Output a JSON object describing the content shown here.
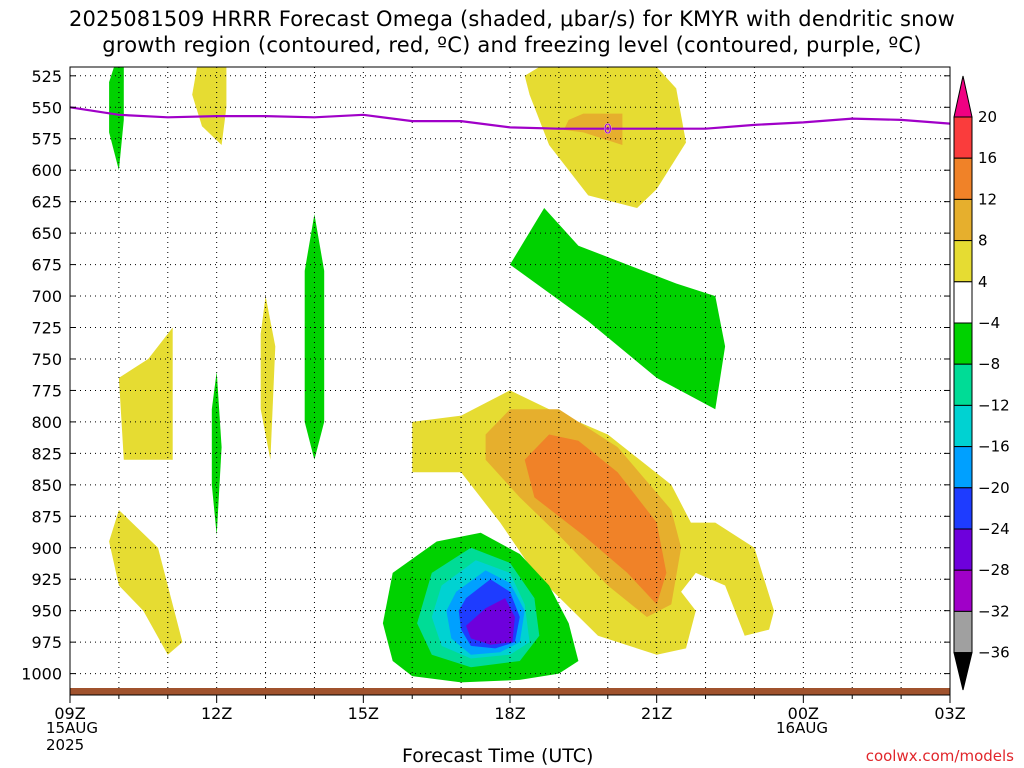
{
  "title": "2025081509 HRRR Forecast Omega (shaded, μbar/s) for KMYR with dendritic snow\ngrowth region (contoured, red, ºC) and freezing level (contoured, purple, ºC)",
  "credit": "coolwx.com/models",
  "start_date": "15AUG\n2025",
  "next_date": "16AUG",
  "colors": {
    "freezing_level": "#a000c8",
    "terrain": "#a0522d",
    "levels": [
      "#000000",
      "#a0a0a0",
      "#a000c8",
      "#6e00dc",
      "#1e3cff",
      "#00a0ff",
      "#00d2d2",
      "#00dc96",
      "#00d200",
      "#ffffff",
      "#e6dc32",
      "#e6af2d",
      "#f08228",
      "#fa3c3c",
      "#f00082"
    ]
  },
  "chart_data": {
    "type": "heatmap",
    "title": "2025081509 HRRR Forecast Omega (shaded, μbar/s) for KMYR with dendritic snow growth region (contoured, red, ºC) and freezing level (contoured, purple, ºC)",
    "xlabel": "Forecast Time (UTC)",
    "ylabel": "",
    "x_ticks": [
      "09Z",
      "12Z",
      "15Z",
      "18Z",
      "21Z",
      "00Z",
      "03Z"
    ],
    "x_ticks_hours": [
      0,
      3,
      6,
      9,
      12,
      15,
      18
    ],
    "y_ticks": [
      525,
      550,
      575,
      600,
      625,
      650,
      675,
      700,
      725,
      750,
      775,
      800,
      825,
      850,
      875,
      900,
      925,
      950,
      975,
      1000
    ],
    "ylim": [
      1017,
      518
    ],
    "xlim": [
      0,
      18
    ],
    "grid": true,
    "colorbar": {
      "labels": [
        20,
        16,
        12,
        8,
        4,
        -4,
        -8,
        -12,
        -16,
        -20,
        -24,
        -28,
        -32,
        -36
      ]
    },
    "freezing_level_contour": {
      "label": "0",
      "points": [
        [
          0,
          550
        ],
        [
          1,
          556
        ],
        [
          2,
          558
        ],
        [
          3,
          557
        ],
        [
          4,
          557
        ],
        [
          5,
          558
        ],
        [
          6,
          556
        ],
        [
          7,
          561
        ],
        [
          8,
          561
        ],
        [
          9,
          566
        ],
        [
          10,
          567
        ],
        [
          11,
          567
        ],
        [
          12,
          567
        ],
        [
          13,
          567
        ],
        [
          14,
          564
        ],
        [
          15,
          562
        ],
        [
          16,
          559
        ],
        [
          17,
          560
        ],
        [
          18,
          563
        ]
      ]
    },
    "omega_regions": [
      {
        "level": 4,
        "points": [
          [
            12.4,
            535
          ],
          [
            12.6,
            578
          ],
          [
            12.0,
            615
          ],
          [
            11.6,
            630
          ],
          [
            10.6,
            620
          ],
          [
            9.8,
            580
          ],
          [
            9.4,
            540
          ],
          [
            9.3,
            525
          ],
          [
            9.6,
            518
          ],
          [
            12.0,
            518
          ]
        ]
      },
      {
        "level": 8,
        "points": [
          [
            11.3,
            555
          ],
          [
            11.3,
            580
          ],
          [
            10.5,
            570
          ],
          [
            10.1,
            568
          ],
          [
            10.2,
            560
          ],
          [
            10.5,
            555
          ]
        ]
      },
      {
        "level": -4,
        "points": [
          [
            0.9,
            518
          ],
          [
            1.1,
            518
          ],
          [
            1.1,
            560
          ],
          [
            1.0,
            600
          ],
          [
            0.8,
            570
          ],
          [
            0.8,
            530
          ]
        ]
      },
      {
        "level": 4,
        "points": [
          [
            2.6,
            518
          ],
          [
            3.2,
            518
          ],
          [
            3.2,
            550
          ],
          [
            3.1,
            580
          ],
          [
            2.7,
            565
          ],
          [
            2.5,
            540
          ]
        ]
      },
      {
        "level": -4,
        "points": [
          [
            5.0,
            635
          ],
          [
            5.2,
            680
          ],
          [
            5.2,
            800
          ],
          [
            5.0,
            830
          ],
          [
            4.8,
            800
          ],
          [
            4.8,
            680
          ]
        ]
      },
      {
        "level": 4,
        "points": [
          [
            4.0,
            700
          ],
          [
            4.2,
            740
          ],
          [
            4.1,
            830
          ],
          [
            3.9,
            790
          ],
          [
            3.9,
            730
          ]
        ]
      },
      {
        "level": -4,
        "points": [
          [
            3.0,
            760
          ],
          [
            3.1,
            820
          ],
          [
            3.0,
            890
          ],
          [
            2.9,
            850
          ],
          [
            2.9,
            790
          ]
        ]
      },
      {
        "level": 4,
        "points": [
          [
            2.1,
            725
          ],
          [
            2.1,
            830
          ],
          [
            1.1,
            830
          ],
          [
            1.0,
            765
          ],
          [
            1.6,
            750
          ]
        ]
      },
      {
        "level": 4,
        "points": [
          [
            1.0,
            870
          ],
          [
            1.8,
            900
          ],
          [
            2.3,
            975
          ],
          [
            2.0,
            985
          ],
          [
            1.5,
            950
          ],
          [
            1.0,
            930
          ],
          [
            0.8,
            895
          ]
        ]
      },
      {
        "level": -4,
        "points": [
          [
            9.7,
            630
          ],
          [
            10.4,
            660
          ],
          [
            12.4,
            690
          ],
          [
            13.2,
            700
          ],
          [
            13.4,
            740
          ],
          [
            13.2,
            790
          ],
          [
            12.0,
            765
          ],
          [
            10.6,
            720
          ],
          [
            9.0,
            675
          ]
        ]
      },
      {
        "level": 4,
        "points": [
          [
            7.0,
            800
          ],
          [
            8.0,
            795
          ],
          [
            9.0,
            775
          ],
          [
            9.8,
            790
          ],
          [
            11.0,
            810
          ],
          [
            12.3,
            850
          ],
          [
            12.7,
            880
          ],
          [
            13.2,
            880
          ],
          [
            14.0,
            900
          ],
          [
            14.4,
            950
          ],
          [
            14.3,
            965
          ],
          [
            13.8,
            970
          ],
          [
            13.4,
            930
          ],
          [
            12.8,
            920
          ],
          [
            12.5,
            935
          ],
          [
            12.8,
            950
          ],
          [
            12.6,
            980
          ],
          [
            12.0,
            985
          ],
          [
            10.8,
            970
          ],
          [
            9.5,
            920
          ],
          [
            8.8,
            880
          ],
          [
            8.0,
            840
          ],
          [
            7.0,
            840
          ]
        ]
      },
      {
        "level": 8,
        "points": [
          [
            8.5,
            810
          ],
          [
            9.0,
            790
          ],
          [
            10.0,
            790
          ],
          [
            11.2,
            820
          ],
          [
            12.3,
            870
          ],
          [
            12.5,
            900
          ],
          [
            12.3,
            945
          ],
          [
            11.8,
            955
          ],
          [
            11.0,
            930
          ],
          [
            10.0,
            890
          ],
          [
            9.2,
            860
          ],
          [
            8.5,
            830
          ]
        ]
      },
      {
        "level": 12,
        "points": [
          [
            9.3,
            830
          ],
          [
            9.8,
            810
          ],
          [
            10.4,
            815
          ],
          [
            11.2,
            840
          ],
          [
            12.0,
            880
          ],
          [
            12.2,
            920
          ],
          [
            12.0,
            945
          ],
          [
            11.4,
            920
          ],
          [
            10.5,
            890
          ],
          [
            9.5,
            860
          ]
        ]
      },
      {
        "level": -4,
        "points": [
          [
            6.6,
            920
          ],
          [
            7.5,
            895
          ],
          [
            8.4,
            888
          ],
          [
            9.2,
            905
          ],
          [
            9.8,
            930
          ],
          [
            10.2,
            960
          ],
          [
            10.4,
            990
          ],
          [
            10.0,
            1000
          ],
          [
            9.2,
            1005
          ],
          [
            8.0,
            1007
          ],
          [
            7.0,
            1002
          ],
          [
            6.6,
            990
          ],
          [
            6.4,
            960
          ]
        ]
      },
      {
        "level": -8,
        "points": [
          [
            7.4,
            920
          ],
          [
            8.2,
            900
          ],
          [
            9.0,
            912
          ],
          [
            9.5,
            940
          ],
          [
            9.6,
            970
          ],
          [
            9.2,
            990
          ],
          [
            8.2,
            995
          ],
          [
            7.4,
            985
          ],
          [
            7.1,
            960
          ]
        ]
      },
      {
        "level": -12,
        "points": [
          [
            7.6,
            930
          ],
          [
            8.3,
            910
          ],
          [
            9.0,
            920
          ],
          [
            9.3,
            945
          ],
          [
            9.4,
            975
          ],
          [
            9.0,
            985
          ],
          [
            8.2,
            988
          ],
          [
            7.6,
            978
          ],
          [
            7.4,
            955
          ]
        ]
      },
      {
        "level": -16,
        "points": [
          [
            7.9,
            935
          ],
          [
            8.5,
            918
          ],
          [
            9.0,
            928
          ],
          [
            9.3,
            950
          ],
          [
            9.2,
            975
          ],
          [
            8.8,
            983
          ],
          [
            8.2,
            985
          ],
          [
            7.8,
            972
          ],
          [
            7.7,
            950
          ]
        ]
      },
      {
        "level": -20,
        "points": [
          [
            8.1,
            940
          ],
          [
            8.6,
            925
          ],
          [
            9.0,
            935
          ],
          [
            9.2,
            955
          ],
          [
            9.1,
            975
          ],
          [
            8.7,
            980
          ],
          [
            8.2,
            978
          ],
          [
            8.0,
            965
          ],
          [
            7.95,
            950
          ]
        ]
      },
      {
        "level": -24,
        "points": [
          [
            8.5,
            948
          ],
          [
            8.9,
            940
          ],
          [
            9.1,
            955
          ],
          [
            9.05,
            975
          ],
          [
            8.6,
            977
          ],
          [
            8.2,
            972
          ],
          [
            8.1,
            962
          ]
        ]
      }
    ]
  }
}
